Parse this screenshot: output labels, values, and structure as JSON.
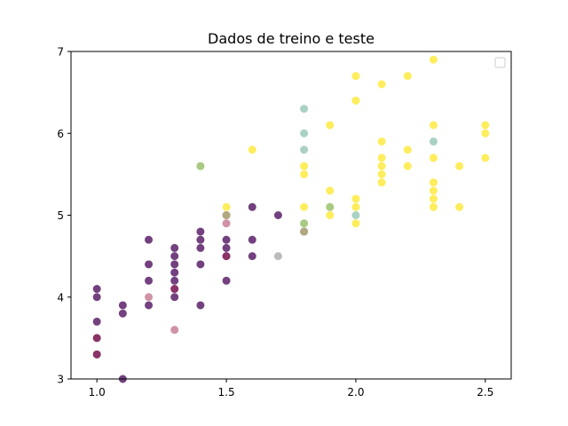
{
  "chart_data": {
    "type": "scatter",
    "title": "Dados de treino e teste",
    "xlabel": "",
    "ylabel": "",
    "xlim": [
      0.9,
      2.6
    ],
    "ylim": [
      3.0,
      7.0
    ],
    "x_ticks": [
      "1.0",
      "1.5",
      "2.0",
      "2.5"
    ],
    "y_ticks": [
      "3",
      "4",
      "5",
      "6",
      "7"
    ],
    "grid": false,
    "legend": "top-right",
    "colors": {
      "train_class_0": "#440154",
      "train_class_2": "#fde725",
      "test_class_0": "#a1254f",
      "test_class_2": "#70b39d",
      "test_mixed": "#a0a0a0"
    },
    "series": [
      {
        "color_key": "train_class_0",
        "opacity": 0.75,
        "points": [
          [
            1.0,
            4.1
          ],
          [
            1.0,
            4.0
          ],
          [
            1.0,
            3.7
          ],
          [
            1.0,
            3.5
          ],
          [
            1.0,
            3.3
          ],
          [
            1.1,
            3.9
          ],
          [
            1.1,
            3.8
          ],
          [
            1.1,
            3.0
          ],
          [
            1.2,
            4.7
          ],
          [
            1.2,
            4.4
          ],
          [
            1.2,
            4.2
          ],
          [
            1.2,
            3.9
          ],
          [
            1.3,
            4.6
          ],
          [
            1.3,
            4.5
          ],
          [
            1.3,
            4.4
          ],
          [
            1.3,
            4.3
          ],
          [
            1.3,
            4.2
          ],
          [
            1.3,
            4.1
          ],
          [
            1.3,
            4.0
          ],
          [
            1.4,
            4.8
          ],
          [
            1.4,
            4.7
          ],
          [
            1.4,
            4.6
          ],
          [
            1.4,
            4.4
          ],
          [
            1.4,
            3.9
          ],
          [
            1.5,
            5.0
          ],
          [
            1.5,
            4.7
          ],
          [
            1.5,
            4.6
          ],
          [
            1.5,
            4.5
          ],
          [
            1.5,
            4.2
          ],
          [
            1.6,
            5.1
          ],
          [
            1.6,
            4.7
          ],
          [
            1.6,
            4.5
          ],
          [
            1.7,
            5.0
          ],
          [
            1.8,
            4.8
          ]
        ]
      },
      {
        "color_key": "train_class_2",
        "opacity": 0.75,
        "points": [
          [
            1.4,
            5.6
          ],
          [
            1.5,
            5.1
          ],
          [
            1.5,
            5.0
          ],
          [
            1.6,
            5.8
          ],
          [
            1.8,
            5.6
          ],
          [
            1.8,
            5.5
          ],
          [
            1.8,
            5.1
          ],
          [
            1.8,
            4.9
          ],
          [
            1.8,
            4.8
          ],
          [
            1.9,
            6.1
          ],
          [
            1.9,
            5.3
          ],
          [
            1.9,
            5.1
          ],
          [
            1.9,
            5.0
          ],
          [
            2.0,
            6.7
          ],
          [
            2.0,
            6.4
          ],
          [
            2.0,
            5.2
          ],
          [
            2.0,
            5.1
          ],
          [
            2.0,
            4.9
          ],
          [
            2.1,
            6.6
          ],
          [
            2.1,
            5.9
          ],
          [
            2.1,
            5.7
          ],
          [
            2.1,
            5.6
          ],
          [
            2.1,
            5.5
          ],
          [
            2.1,
            5.4
          ],
          [
            2.2,
            6.7
          ],
          [
            2.2,
            5.8
          ],
          [
            2.2,
            5.6
          ],
          [
            2.3,
            6.9
          ],
          [
            2.3,
            6.1
          ],
          [
            2.3,
            5.7
          ],
          [
            2.3,
            5.4
          ],
          [
            2.3,
            5.3
          ],
          [
            2.3,
            5.2
          ],
          [
            2.3,
            5.1
          ],
          [
            2.4,
            5.6
          ],
          [
            2.4,
            5.1
          ],
          [
            2.5,
            6.1
          ],
          [
            2.5,
            6.0
          ],
          [
            2.5,
            5.7
          ]
        ]
      },
      {
        "color_key": "test_class_0",
        "opacity": 0.5,
        "points": [
          [
            1.0,
            3.5
          ],
          [
            1.0,
            3.3
          ],
          [
            1.2,
            4.0
          ],
          [
            1.3,
            4.1
          ],
          [
            1.3,
            3.6
          ],
          [
            1.5,
            4.9
          ],
          [
            1.5,
            4.5
          ]
        ]
      },
      {
        "color_key": "test_class_2",
        "opacity": 0.6,
        "points": [
          [
            1.4,
            5.6
          ],
          [
            1.8,
            6.3
          ],
          [
            1.8,
            6.0
          ],
          [
            1.8,
            5.8
          ],
          [
            1.8,
            4.9
          ],
          [
            1.9,
            5.1
          ],
          [
            2.0,
            5.0
          ],
          [
            2.3,
            5.9
          ]
        ]
      },
      {
        "color_key": "test_mixed",
        "opacity": 0.7,
        "points": [
          [
            1.5,
            5.0
          ],
          [
            1.7,
            4.5
          ],
          [
            1.8,
            4.8
          ]
        ]
      }
    ]
  }
}
